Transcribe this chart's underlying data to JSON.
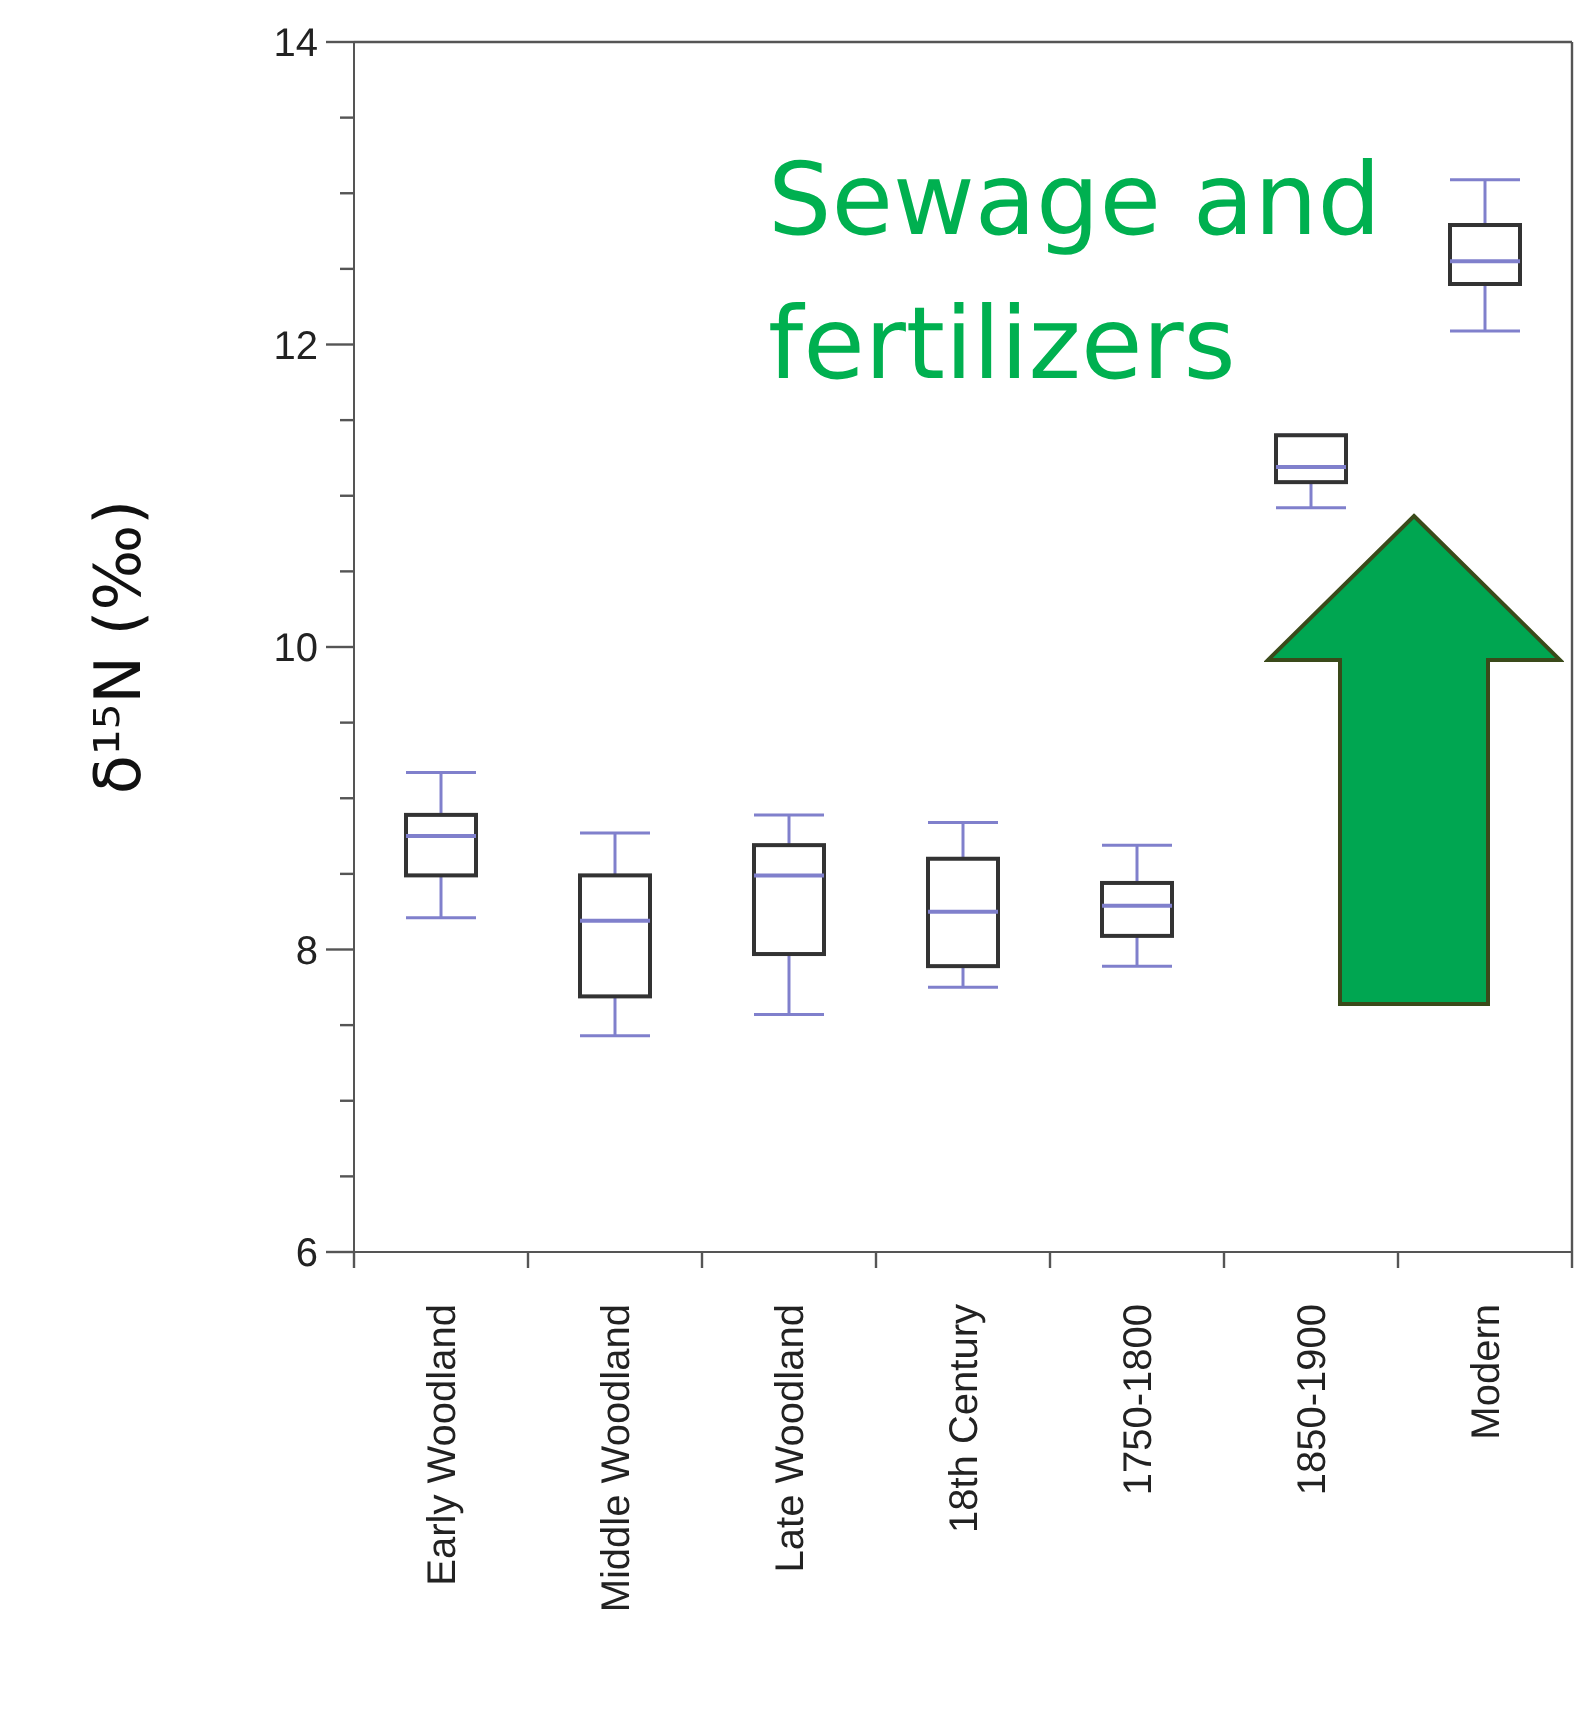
{
  "chart_data": {
    "type": "box",
    "ylabel": "δ¹⁵N (‰)",
    "categories": [
      "Early Woodland",
      "Middle Woodland",
      "Late Woodland",
      "18th Century",
      "1750-1800",
      "1850-1900",
      "Modern"
    ],
    "series": [
      {
        "color": "#333333",
        "boxes": [
          {
            "low": 8.21,
            "q1": 8.49,
            "median": 8.75,
            "q3": 8.89,
            "high": 9.17
          },
          {
            "low": 7.43,
            "q1": 7.69,
            "median": 8.19,
            "q3": 8.49,
            "high": 8.77
          },
          {
            "low": 7.57,
            "q1": 7.97,
            "median": 8.49,
            "q3": 8.69,
            "high": 8.89
          },
          {
            "low": 7.75,
            "q1": 7.89,
            "median": 8.25,
            "q3": 8.6,
            "high": 8.84
          },
          {
            "low": 7.89,
            "q1": 8.09,
            "median": 8.29,
            "q3": 8.44,
            "high": 8.69
          },
          {
            "low": 10.92,
            "q1": 11.09,
            "median": 11.19,
            "q3": 11.4,
            "high": 11.4
          },
          {
            "low": 12.09,
            "q1": 12.4,
            "median": 12.55,
            "q3": 12.79,
            "high": 13.09
          }
        ]
      }
    ],
    "ylim": [
      6,
      14
    ],
    "yticks": [
      6,
      {
        "value": 6.5,
        "label": null
      },
      {
        "value": 7,
        "label": null
      },
      {
        "value": 7.5,
        "label": null
      },
      8,
      {
        "value": 8.5,
        "label": null
      },
      {
        "value": 9,
        "label": null
      },
      {
        "value": 9.5,
        "label": null
      },
      10,
      {
        "value": 10.5,
        "label": null
      },
      {
        "value": 11,
        "label": null
      },
      {
        "value": 11.5,
        "label": null
      },
      12,
      {
        "value": 12.5,
        "label": null
      },
      {
        "value": 13,
        "label": null
      },
      {
        "value": 13.5,
        "label": null
      },
      14
    ],
    "annotations": [
      "Sewage and fertilizers"
    ]
  }
}
